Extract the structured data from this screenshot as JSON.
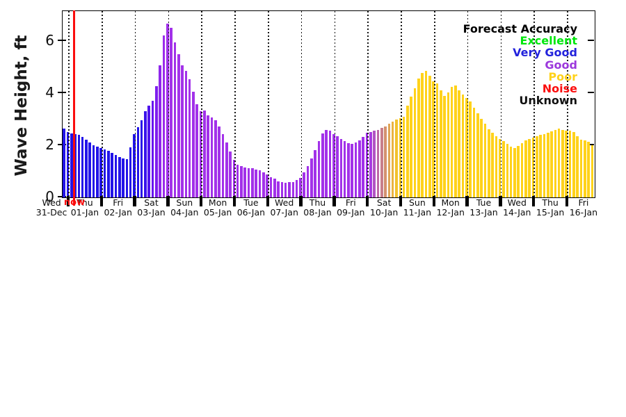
{
  "figure": {
    "background": "#ffffff",
    "y_axis": {
      "label": "Wave Height, ft",
      "ticks": [
        0,
        2,
        4,
        6
      ],
      "right_tick_values": [
        2,
        4,
        6
      ]
    },
    "now_marker": {
      "label": "now",
      "color": "#fb0d0d"
    },
    "legend": {
      "title": "Forecast Accuracy",
      "items": [
        {
          "label": "Excellent",
          "color": "#00e70c"
        },
        {
          "label": "Very Good",
          "color": "#2222dc"
        },
        {
          "label": "Good",
          "color": "#9c38dc"
        },
        {
          "label": "Poor",
          "color": "#ffd21a"
        },
        {
          "label": "Noise",
          "color": "#fb0d0d"
        },
        {
          "label": "Unknown",
          "color": "#111111"
        }
      ]
    }
  },
  "chart_data": {
    "type": "bar",
    "ylabel": "Wave Height, ft",
    "ylim": [
      0,
      7.15
    ],
    "values_unit": "ft",
    "grid": "vertical dotted lines at each midnight",
    "legend_position": "upper right",
    "series_name": "Wave height forecast, bar color = forecast accuracy (blue=Very Good, purple=Good, yellow=Poor; gradients on 03-Jan and 10-Jan)",
    "categories": [
      {
        "name": "Wed",
        "date": "31-Dec"
      },
      {
        "name": "Thu",
        "date": "01-Jan"
      },
      {
        "name": "Fri",
        "date": "02-Jan"
      },
      {
        "name": "Sat",
        "date": "03-Jan"
      },
      {
        "name": "Sun",
        "date": "04-Jan"
      },
      {
        "name": "Mon",
        "date": "05-Jan"
      },
      {
        "name": "Tue",
        "date": "06-Jan"
      },
      {
        "name": "Wed",
        "date": "07-Jan"
      },
      {
        "name": "Thu",
        "date": "08-Jan"
      },
      {
        "name": "Fri",
        "date": "09-Jan"
      },
      {
        "name": "Sat",
        "date": "10-Jan"
      },
      {
        "name": "Sun",
        "date": "11-Jan"
      },
      {
        "name": "Mon",
        "date": "12-Jan"
      },
      {
        "name": "Tue",
        "date": "13-Jan"
      },
      {
        "name": "Wed",
        "date": "14-Jan"
      },
      {
        "name": "Thu",
        "date": "15-Jan"
      },
      {
        "name": "Fri",
        "date": "16-Jan"
      }
    ],
    "bars_per_full_day": 9,
    "first_day_bars": 2,
    "last_day_bars": 7,
    "heights": [
      2.65,
      2.52,
      2.45,
      2.43,
      2.4,
      2.32,
      2.22,
      2.12,
      2.0,
      1.94,
      1.9,
      1.85,
      1.78,
      1.7,
      1.62,
      1.55,
      1.5,
      1.47,
      1.92,
      2.42,
      2.7,
      2.95,
      3.3,
      3.52,
      3.7,
      4.27,
      5.08,
      6.22,
      6.68,
      6.5,
      5.96,
      5.5,
      5.08,
      4.85,
      4.53,
      4.05,
      3.58,
      3.32,
      3.34,
      3.16,
      3.08,
      2.96,
      2.73,
      2.42,
      2.1,
      1.76,
      1.45,
      1.26,
      1.2,
      1.14,
      1.11,
      1.13,
      1.08,
      1.03,
      0.96,
      0.88,
      0.78,
      0.71,
      0.62,
      0.58,
      0.56,
      0.58,
      0.6,
      0.67,
      0.76,
      0.95,
      1.2,
      1.5,
      1.82,
      2.16,
      2.45,
      2.6,
      2.56,
      2.42,
      2.35,
      2.25,
      2.15,
      2.08,
      2.05,
      2.1,
      2.2,
      2.33,
      2.48,
      2.52,
      2.56,
      2.6,
      2.66,
      2.73,
      2.82,
      2.9,
      2.98,
      3.05,
      3.1,
      3.52,
      3.86,
      4.2,
      4.55,
      4.77,
      4.85,
      4.66,
      4.45,
      4.38,
      4.12,
      3.9,
      4.03,
      4.25,
      4.3,
      4.1,
      3.95,
      3.82,
      3.68,
      3.45,
      3.24,
      3.02,
      2.82,
      2.62,
      2.48,
      2.34,
      2.24,
      2.16,
      2.05,
      1.96,
      1.9,
      1.97,
      2.08,
      2.18,
      2.24,
      2.3,
      2.34,
      2.4,
      2.44,
      2.49,
      2.54,
      2.6,
      2.64,
      2.6,
      2.55,
      2.55,
      2.5,
      2.36,
      2.22,
      2.2,
      2.13,
      2.0
    ],
    "colors": [
      "#2214e8",
      "#2214e8",
      "#2214e8",
      "#2214e8",
      "#2214e8",
      "#2214e8",
      "#2214e8",
      "#2214e8",
      "#2214e8",
      "#2214e8",
      "#2214e8",
      "#2214e8",
      "#2214e8",
      "#2214e8",
      "#2214e8",
      "#2214e8",
      "#2214e8",
      "#2214e8",
      "#2214e8",
      "#2214e8",
      "#2214e8",
      "#2a14e9",
      "#3a13eb",
      "#5013ed",
      "#6815ee",
      "#7e1dee",
      "#8f26ec",
      "#9a2ceb",
      "#a030ea",
      "#a231e9",
      "#a231e9",
      "#a231e9",
      "#a231e9",
      "#a231e9",
      "#a231e9",
      "#a231e9",
      "#a231e9",
      "#a231e9",
      "#a231e9",
      "#a231e9",
      "#a231e9",
      "#a231e9",
      "#a231e9",
      "#a231e9",
      "#a231e9",
      "#a231e9",
      "#a231e9",
      "#a231e9",
      "#a231e9",
      "#a231e9",
      "#a231e9",
      "#a231e9",
      "#a231e9",
      "#a231e9",
      "#a231e9",
      "#a231e9",
      "#a231e9",
      "#a231e9",
      "#a231e9",
      "#a231e9",
      "#a231e9",
      "#a231e9",
      "#a231e9",
      "#a231e9",
      "#a231e9",
      "#a231e9",
      "#a231e9",
      "#a231e9",
      "#a231e9",
      "#a231e9",
      "#a231e9",
      "#a231e9",
      "#a231e9",
      "#a231e9",
      "#a231e9",
      "#a231e9",
      "#a231e9",
      "#a231e9",
      "#a231e9",
      "#a231e9",
      "#a231e9",
      "#a231e9",
      "#a231e9",
      "#a83be0",
      "#b253c4",
      "#bd69a7",
      "#c87e8b",
      "#d49170",
      "#dfa458",
      "#e9b341",
      "#f2c12d",
      "#f9ca20",
      "#ffd21a",
      "#ffd21a",
      "#ffd21a",
      "#ffd21a",
      "#ffd21a",
      "#ffd21a",
      "#ffd21a",
      "#ffd21a",
      "#ffd21a",
      "#ffd21a",
      "#ffd21a",
      "#ffd21a",
      "#ffd21a",
      "#ffd21a",
      "#ffd21a",
      "#ffd21a",
      "#ffd21a",
      "#ffd21a",
      "#ffd21a",
      "#ffd21a",
      "#ffd21a",
      "#ffd21a",
      "#ffd21a",
      "#ffd21a",
      "#ffd21a",
      "#ffd21a",
      "#ffd21a",
      "#ffd21a",
      "#ffd21a",
      "#ffd21a",
      "#ffd21a",
      "#ffd21a",
      "#ffd21a",
      "#ffd21a",
      "#ffd21a",
      "#ffd21a",
      "#ffd21a",
      "#ffd21a",
      "#ffd21a",
      "#ffd21a",
      "#ffd21a",
      "#ffd21a",
      "#ffd21a",
      "#ffd21a",
      "#ffd21a",
      "#ffd21a",
      "#ffd21a",
      "#ffd21a",
      "#ffd21a",
      "#ffd21a",
      "#ffd21a",
      "#ffd21a"
    ]
  }
}
